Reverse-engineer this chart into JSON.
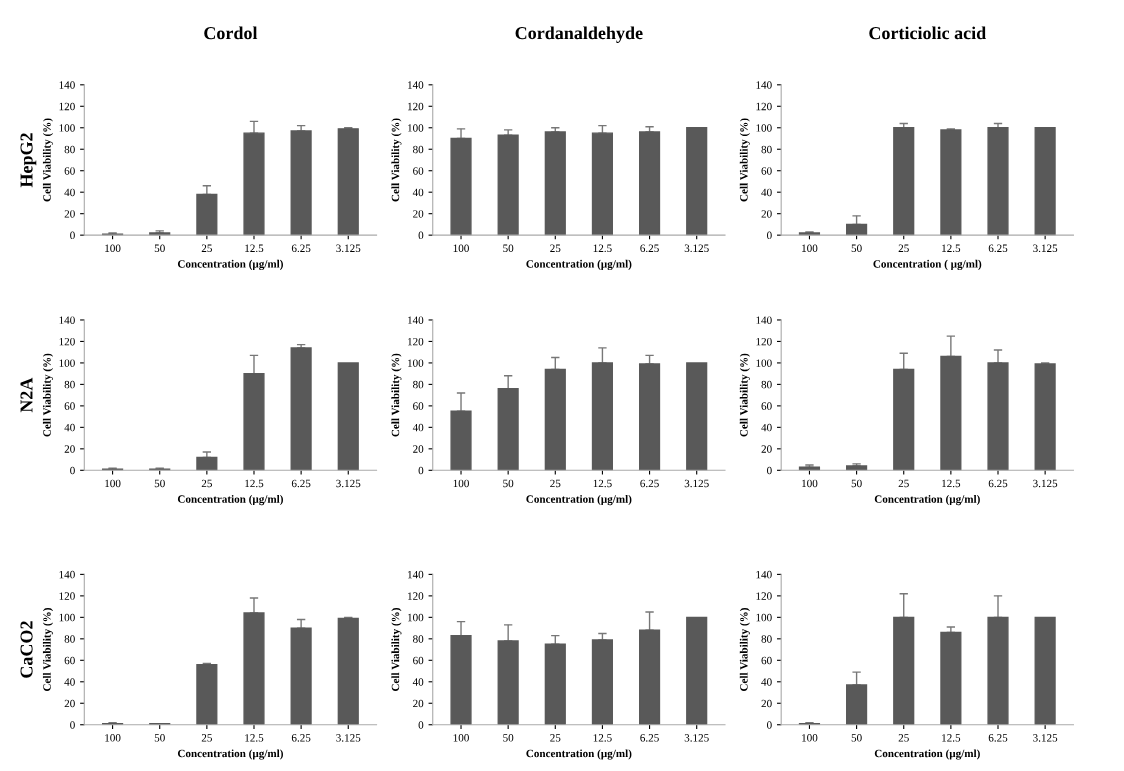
{
  "chart_data": [
    {
      "type": "bar",
      "title": "Cordol",
      "annotations": [
        "HepG2"
      ],
      "xlabel": "Concentration (µg/ml)",
      "ylabel": "Cell Viability (%)",
      "categories": [
        "100",
        "50",
        "25",
        "12.5",
        "6.25",
        "3.125"
      ],
      "values": [
        1,
        2,
        38,
        95,
        97,
        99
      ],
      "errors": [
        [
          1,
          2
        ],
        [
          2,
          4
        ],
        [
          38,
          46
        ],
        [
          95,
          106
        ],
        [
          97,
          102
        ],
        [
          99,
          100
        ]
      ],
      "color": "#595959",
      "ylim": [
        0,
        140
      ],
      "yticks": [
        0,
        20,
        40,
        60,
        80,
        100,
        120,
        140
      ]
    },
    {
      "type": "bar",
      "title": "Cordanaldehyde",
      "xlabel": "Concentration (µg/ml)",
      "ylabel": "Cell Viability (%)",
      "categories": [
        "100",
        "50",
        "25",
        "12.5",
        "6.25",
        "3.125"
      ],
      "values": [
        90,
        93,
        96,
        95,
        96,
        100
      ],
      "errors": [
        [
          90,
          99
        ],
        [
          93,
          98
        ],
        [
          96,
          100
        ],
        [
          95,
          102
        ],
        [
          96,
          101
        ],
        null
      ],
      "color": "#595959",
      "ylim": [
        0,
        140
      ],
      "yticks": [
        0,
        20,
        40,
        60,
        80,
        100,
        120,
        140
      ]
    },
    {
      "type": "bar",
      "title": "Corticiolic acid",
      "xlabel": "Concentration ( µg/ml)",
      "ylabel": "Cell Viability (%)",
      "categories": [
        "100",
        "50",
        "25",
        "12.5",
        "6.25",
        "3.125"
      ],
      "values": [
        2,
        10,
        100,
        98,
        100,
        100
      ],
      "errors": [
        [
          2,
          3
        ],
        [
          10,
          18
        ],
        [
          100,
          104
        ],
        [
          98,
          99
        ],
        [
          100,
          104
        ],
        null
      ],
      "color": "#595959",
      "ylim": [
        0,
        140
      ],
      "yticks": [
        0,
        20,
        40,
        60,
        80,
        100,
        120,
        140
      ]
    },
    {
      "type": "bar",
      "annotations": [
        "N2A"
      ],
      "xlabel": "Concentration (µg/ml)",
      "ylabel": "Cell Viability (%)",
      "categories": [
        "100",
        "50",
        "25",
        "12.5",
        "6.25",
        "3.125"
      ],
      "values": [
        1,
        1,
        12,
        90,
        114,
        100
      ],
      "errors": [
        [
          1,
          2
        ],
        [
          1,
          2
        ],
        [
          12,
          17
        ],
        [
          90,
          107
        ],
        [
          114,
          117
        ],
        null
      ],
      "color": "#595959",
      "ylim": [
        0,
        140
      ],
      "yticks": [
        0,
        20,
        40,
        60,
        80,
        100,
        120,
        140
      ]
    },
    {
      "type": "bar",
      "xlabel": "Concentration (µg/ml)",
      "ylabel": "Cell Viability (%)",
      "categories": [
        "100",
        "50",
        "25",
        "12.5",
        "6.25",
        "3.125"
      ],
      "values": [
        55,
        76,
        94,
        100,
        99,
        100
      ],
      "errors": [
        [
          55,
          72
        ],
        [
          76,
          88
        ],
        [
          94,
          105
        ],
        [
          100,
          114
        ],
        [
          99,
          107
        ],
        null
      ],
      "color": "#595959",
      "ylim": [
        0,
        140
      ],
      "yticks": [
        0,
        20,
        40,
        60,
        80,
        100,
        120,
        140
      ]
    },
    {
      "type": "bar",
      "xlabel": "Concentration (µg/ml)",
      "ylabel": "Cell Viability (%)",
      "categories": [
        "100",
        "50",
        "25",
        "12.5",
        "6.25",
        "3.125"
      ],
      "values": [
        3,
        4,
        94,
        106,
        100,
        99
      ],
      "errors": [
        [
          3,
          5
        ],
        [
          4,
          6
        ],
        [
          94,
          109
        ],
        [
          106,
          125
        ],
        [
          100,
          112
        ],
        [
          99,
          100
        ]
      ],
      "color": "#595959",
      "ylim": [
        0,
        140
      ],
      "yticks": [
        0,
        20,
        40,
        60,
        80,
        100,
        120,
        140
      ]
    },
    {
      "type": "bar",
      "annotations": [
        "CaCO2"
      ],
      "xlabel": "Concentration (µg/ml)",
      "ylabel": "Cell Viability (%)",
      "categories": [
        "100",
        "50",
        "25",
        "12.5",
        "6.25",
        "3.125"
      ],
      "values": [
        1,
        1,
        56,
        104,
        90,
        99
      ],
      "errors": [
        [
          1,
          2
        ],
        null,
        [
          56,
          57
        ],
        [
          104,
          118
        ],
        [
          90,
          98
        ],
        [
          99,
          100
        ]
      ],
      "color": "#595959",
      "ylim": [
        0,
        140
      ],
      "yticks": [
        0,
        20,
        40,
        60,
        80,
        100,
        120,
        140
      ]
    },
    {
      "type": "bar",
      "xlabel": "Concentration (µg/ml)",
      "ylabel": "Cell Viability (%)",
      "categories": [
        "100",
        "50",
        "25",
        "12.5",
        "6.25",
        "3.125"
      ],
      "values": [
        83,
        78,
        75,
        79,
        88,
        100
      ],
      "errors": [
        [
          83,
          96
        ],
        [
          78,
          93
        ],
        [
          75,
          83
        ],
        [
          79,
          85
        ],
        [
          88,
          105
        ],
        null
      ],
      "color": "#595959",
      "ylim": [
        0,
        140
      ],
      "yticks": [
        0,
        20,
        40,
        60,
        80,
        100,
        120,
        140
      ]
    },
    {
      "type": "bar",
      "xlabel": "Concentration (µg/ml)",
      "ylabel": "Cell Viability (%)",
      "categories": [
        "100",
        "50",
        "25",
        "12.5",
        "6.25",
        "3.125"
      ],
      "values": [
        1,
        37,
        100,
        86,
        100,
        100
      ],
      "errors": [
        [
          1,
          2
        ],
        [
          37,
          49
        ],
        [
          100,
          122
        ],
        [
          86,
          91
        ],
        [
          100,
          120
        ],
        null
      ],
      "color": "#595959",
      "ylim": [
        0,
        140
      ],
      "yticks": [
        0,
        20,
        40,
        60,
        80,
        100,
        120,
        140
      ]
    }
  ]
}
